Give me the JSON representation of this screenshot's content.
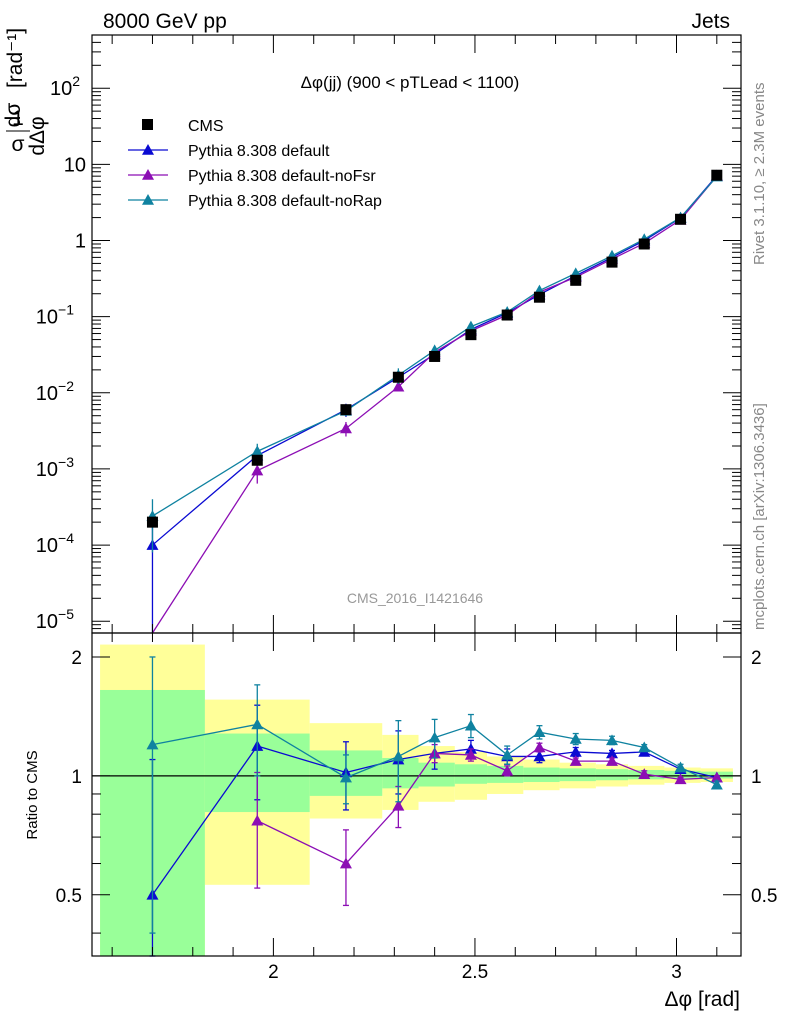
{
  "header": {
    "left": "8000 GeV pp",
    "right": "Jets"
  },
  "side_labels": {
    "rivet": "Rivet 3.1.10, ≥ 2.3M events",
    "mcplots": "mcplots.cern.ch [arXiv:1306.3436]"
  },
  "watermark": "CMS_2016_I1421646",
  "chart_data": {
    "type": "line",
    "title": "Δφ(jj) (900 < pTLead <  1100)",
    "xlabel": "Δφ [rad]",
    "ylabel_main": "1 dσ / σ dΔφ [rad⁻¹]",
    "ylabel_ratio": "Ratio to CMS",
    "xlim": [
      1.55,
      3.16
    ],
    "ylim_main": [
      7e-06,
      500
    ],
    "yscale_main": "log",
    "ylim_ratio": [
      0.35,
      2.3
    ],
    "x_ticks": [
      "2",
      "2.5",
      "3"
    ],
    "ratio_ticks": [
      "0.5",
      "1",
      "2"
    ],
    "legend_position": "top-left",
    "x": [
      1.7,
      1.96,
      2.18,
      2.31,
      2.4,
      2.49,
      2.58,
      2.66,
      2.75,
      2.84,
      2.92,
      3.01,
      3.1
    ],
    "cms": {
      "name": "CMS",
      "values": [
        0.0002,
        0.0013,
        0.006,
        0.016,
        0.03,
        0.058,
        0.105,
        0.18,
        0.3,
        0.52,
        0.9,
        1.9,
        7.2
      ],
      "bin_edges": [
        1.57,
        1.83,
        2.09,
        2.27,
        2.36,
        2.45,
        2.53,
        2.62,
        2.71,
        2.8,
        2.88,
        2.97,
        3.06,
        3.14
      ],
      "band_inner": [
        [
          0.35,
          1.65
        ],
        [
          0.81,
          1.28
        ],
        [
          0.89,
          1.16
        ],
        [
          0.93,
          1.11
        ],
        [
          0.94,
          1.08
        ],
        [
          0.955,
          1.07
        ],
        [
          0.96,
          1.06
        ],
        [
          0.965,
          1.05
        ],
        [
          0.97,
          1.045
        ],
        [
          0.975,
          1.04
        ],
        [
          0.98,
          1.035
        ],
        [
          0.985,
          1.03
        ],
        [
          0.985,
          1.025
        ]
      ],
      "band_outer": [
        [
          0.35,
          2.15
        ],
        [
          0.53,
          1.56
        ],
        [
          0.78,
          1.36
        ],
        [
          0.82,
          1.27
        ],
        [
          0.86,
          1.19
        ],
        [
          0.87,
          1.15
        ],
        [
          0.9,
          1.12
        ],
        [
          0.92,
          1.1
        ],
        [
          0.93,
          1.08
        ],
        [
          0.94,
          1.07
        ],
        [
          0.95,
          1.06
        ],
        [
          0.96,
          1.05
        ],
        [
          0.965,
          1.045
        ]
      ]
    },
    "series": [
      {
        "name": "Pythia 8.308 default",
        "color": "#0a0ad2",
        "values": [
          0.0001,
          0.0015,
          0.006,
          0.016,
          0.032,
          0.068,
          0.112,
          0.195,
          0.345,
          0.6,
          1.0,
          1.98,
          7.1
        ],
        "ratio": [
          0.5,
          1.19,
          1.02,
          1.1,
          1.14,
          1.17,
          1.12,
          1.12,
          1.15,
          1.14,
          1.15,
          1.04,
          0.99
        ],
        "ratio_err": [
          0.6,
          0.32,
          0.2,
          0.2,
          0.1,
          0.06,
          0.05,
          0.04,
          0.03,
          0.02,
          0.02,
          0.01,
          0.01
        ]
      },
      {
        "name": "Pythia 8.308 default-noFsr",
        "color": "#8c0eb4",
        "values": [
          6.7e-06,
          0.00095,
          0.0034,
          0.012,
          0.034,
          0.065,
          0.105,
          0.21,
          0.33,
          0.57,
          0.92,
          1.87,
          7.0
        ],
        "ratio": [
          0.033,
          0.77,
          0.6,
          0.84,
          1.14,
          1.13,
          1.03,
          1.18,
          1.09,
          1.09,
          1.01,
          0.98,
          0.99
        ],
        "ratio_err": [
          0.0,
          0.25,
          0.13,
          0.1,
          0.06,
          0.04,
          0.03,
          0.03,
          0.02,
          0.02,
          0.02,
          0.01,
          0.01
        ]
      },
      {
        "name": "Pythia 8.308 default-noRap",
        "color": "#0f82a0",
        "values": [
          0.00024,
          0.0017,
          0.0058,
          0.017,
          0.036,
          0.074,
          0.115,
          0.22,
          0.37,
          0.63,
          1.04,
          2.0,
          6.9
        ],
        "ratio": [
          1.2,
          1.35,
          0.99,
          1.12,
          1.25,
          1.34,
          1.13,
          1.29,
          1.24,
          1.23,
          1.18,
          1.05,
          0.95
        ],
        "ratio_err": [
          0.8,
          0.35,
          0.14,
          0.26,
          0.14,
          0.09,
          0.06,
          0.05,
          0.04,
          0.03,
          0.02,
          0.02,
          0.02
        ]
      }
    ]
  }
}
